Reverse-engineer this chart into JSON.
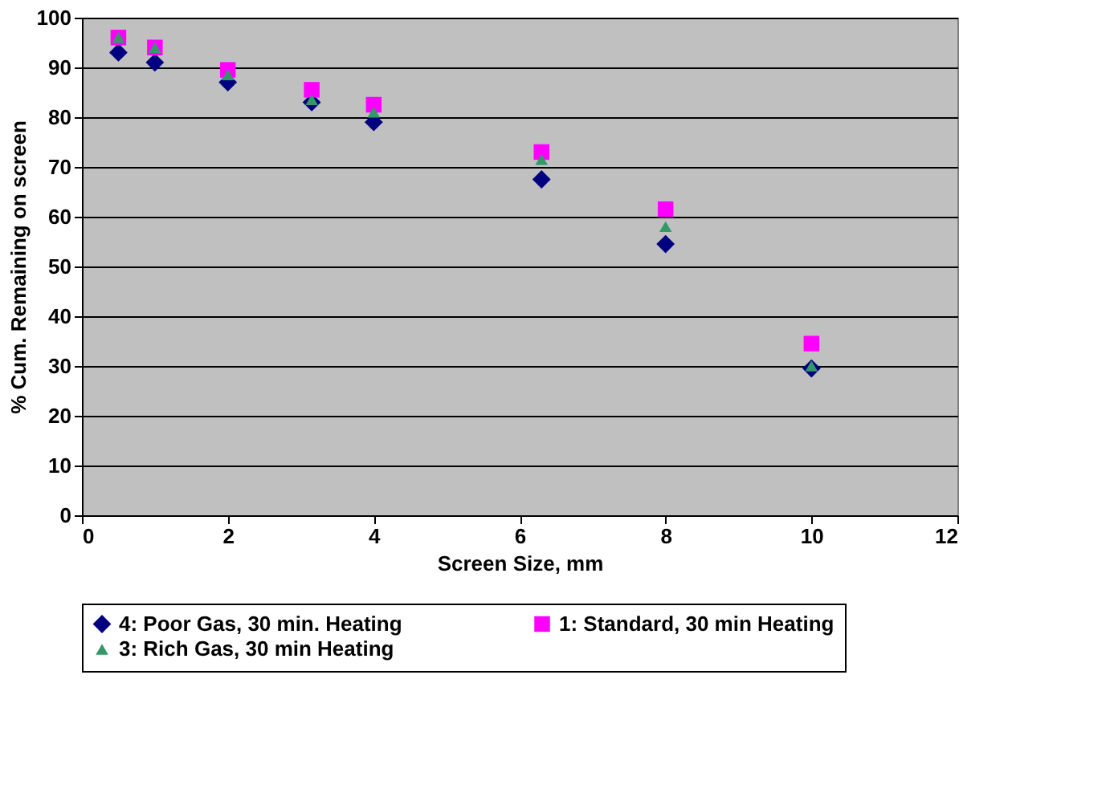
{
  "chart_data": {
    "type": "scatter",
    "xlabel": "Screen Size, mm",
    "ylabel": "% Cum. Remaining on screen",
    "x": [
      0.5,
      1,
      2,
      3.15,
      4,
      6.3,
      8,
      10
    ],
    "xlim": [
      0,
      12
    ],
    "xticks": [
      0,
      2,
      4,
      6,
      8,
      10,
      12
    ],
    "ylim": [
      0,
      100
    ],
    "yticks": [
      0,
      10,
      20,
      30,
      40,
      50,
      60,
      70,
      80,
      90,
      100
    ],
    "grid": "y",
    "legend": "bottom",
    "series": [
      {
        "name": "4: Poor Gas, 30 min. Heating",
        "color": "#000080",
        "marker": "diamond",
        "values": [
          93,
          91,
          87,
          83,
          79,
          67.5,
          54.5,
          29.5
        ]
      },
      {
        "name": "1: Standard, 30 min Heating",
        "color": "#ff00ff",
        "marker": "square",
        "values": [
          96,
          94,
          89.5,
          85.5,
          82.5,
          73,
          61.5,
          34.5
        ]
      },
      {
        "name": "3: Rich Gas, 30 min Heating",
        "color": "#339966",
        "marker": "triangle",
        "values": [
          96,
          94,
          88.5,
          83.5,
          81,
          71.5,
          58,
          30
        ]
      }
    ]
  }
}
